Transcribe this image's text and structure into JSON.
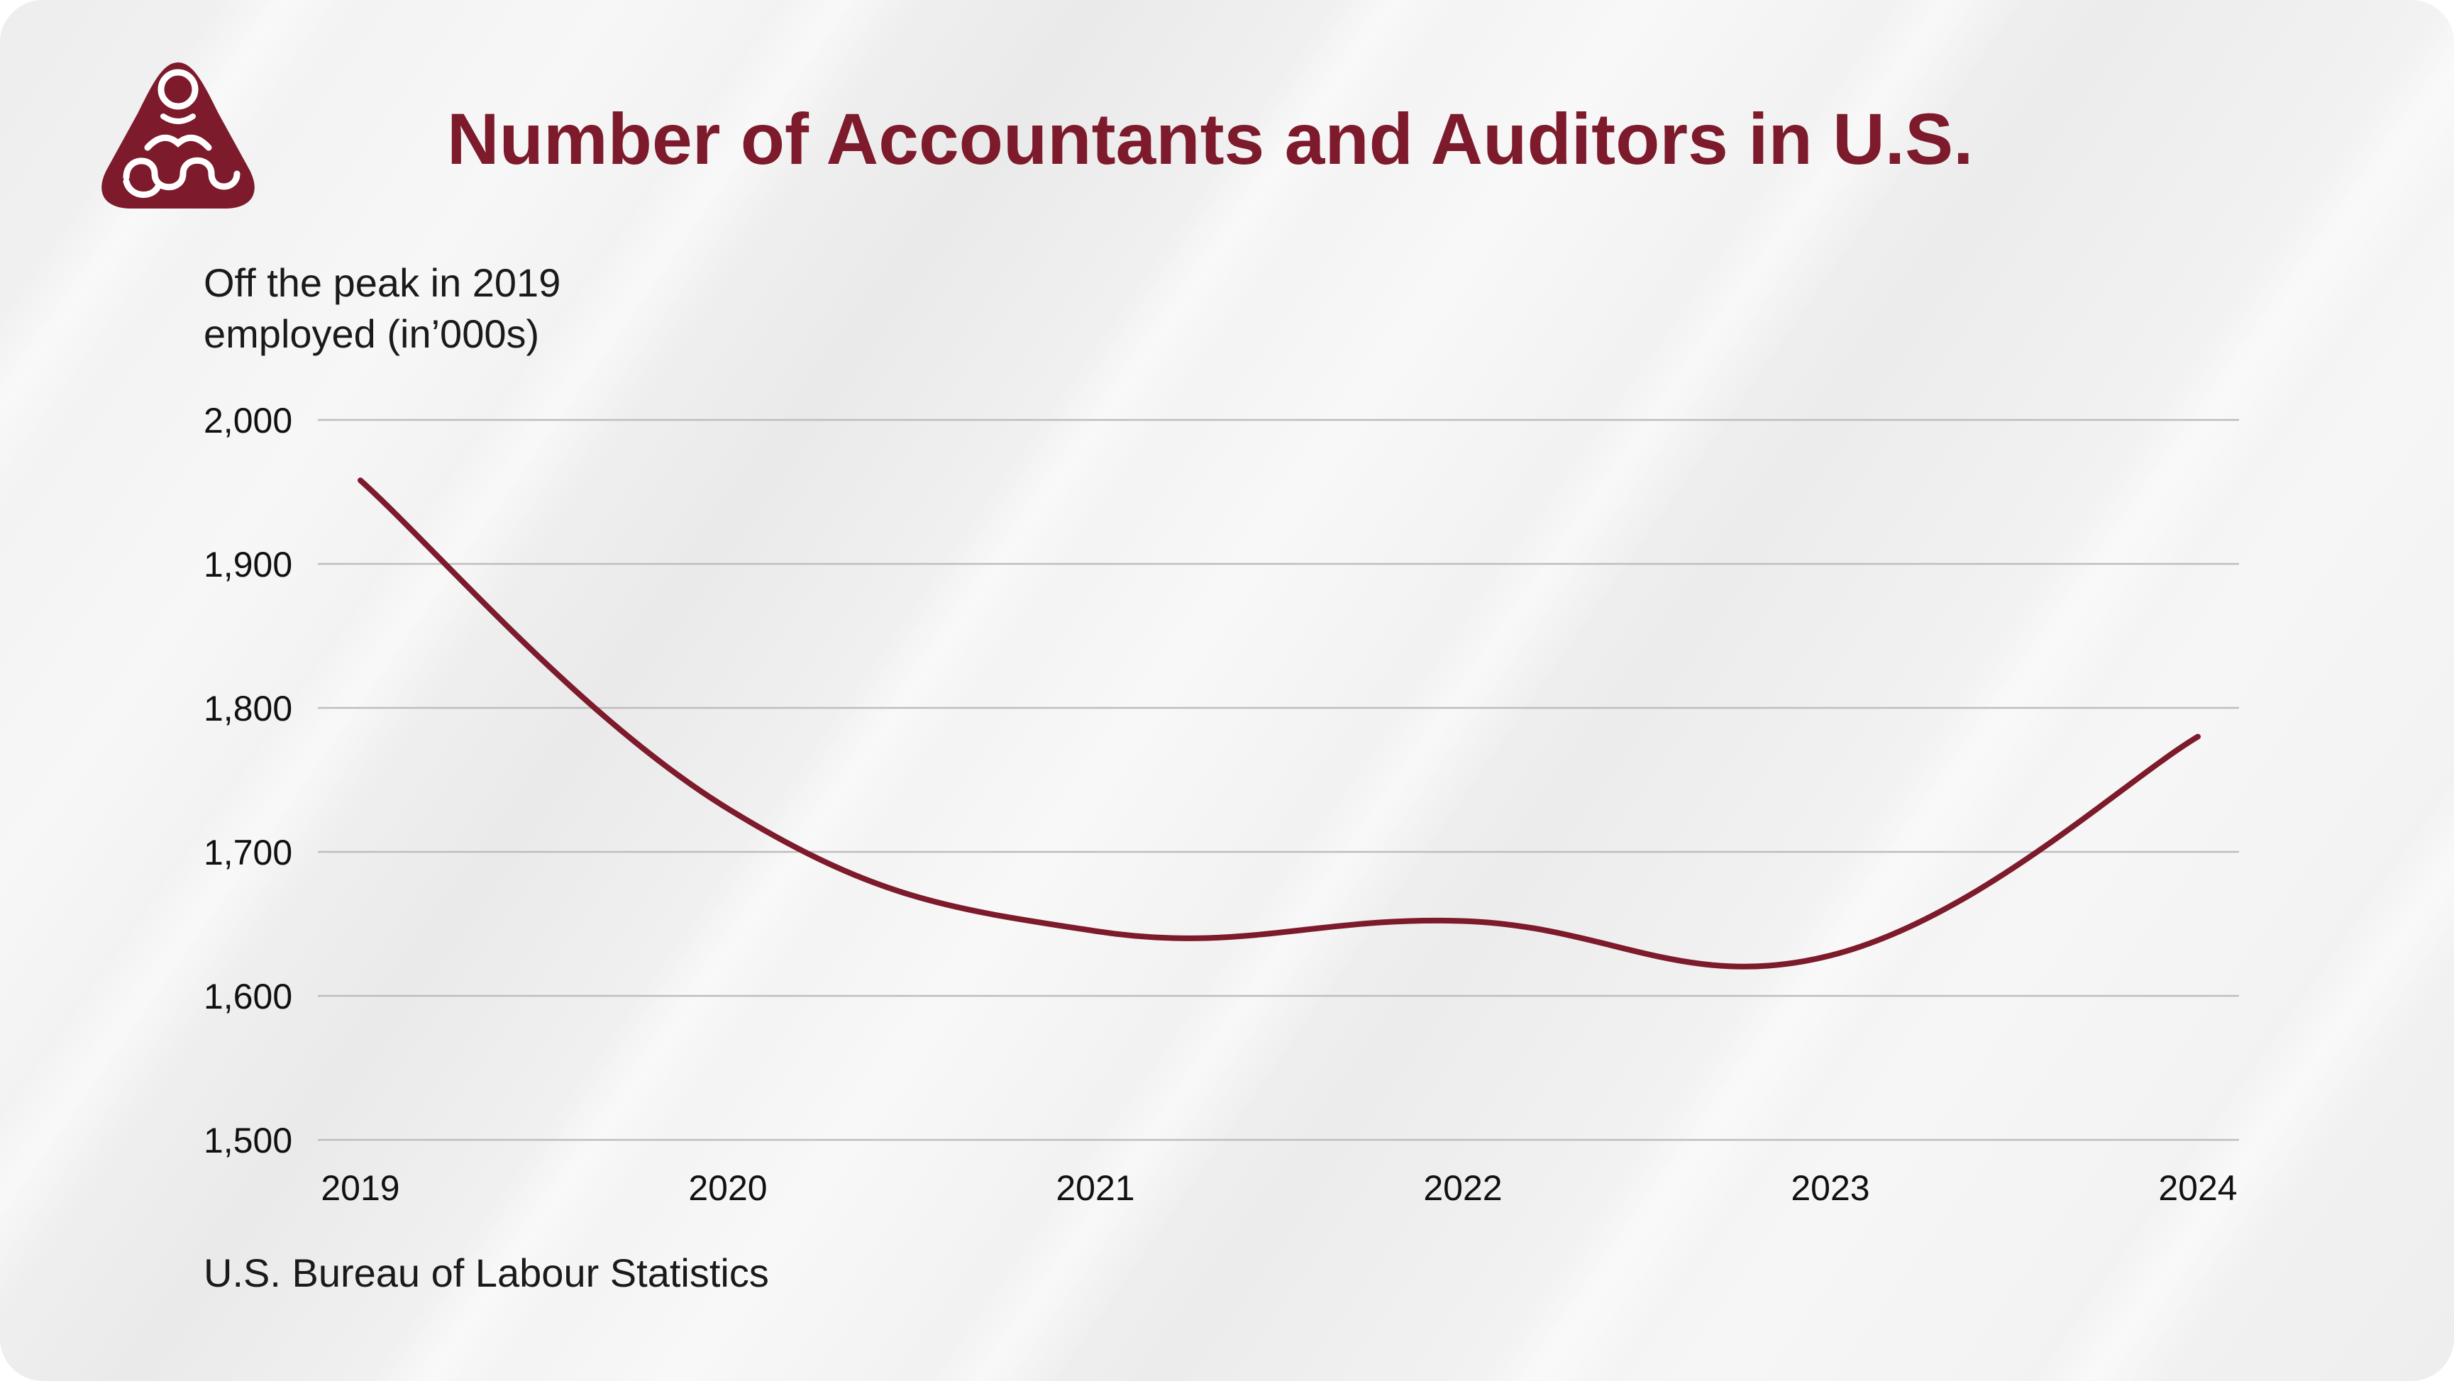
{
  "colors": {
    "accent": "#7d1a2b",
    "gridline": "#bdbdbd",
    "text": "#1a1a1a"
  },
  "logo": {
    "icon": "reader-logo-icon"
  },
  "chart_data": {
    "type": "line",
    "title": "Number of Accountants and Auditors in U.S.",
    "subtitle": [
      "Off the peak in 2019",
      "employed (in’000s)"
    ],
    "x": [
      2019,
      2020,
      2021,
      2022,
      2023,
      2024
    ],
    "x_tick_labels": [
      "2019",
      "2020",
      "2021",
      "2022",
      "2023",
      "2024"
    ],
    "series": [
      {
        "name": "Accountants and Auditors employed (000s)",
        "values": [
          1958,
          1730,
          1645,
          1652,
          1628,
          1780
        ],
        "color": "#7d1a2b"
      }
    ],
    "ylim": [
      1500,
      2000
    ],
    "y_ticks": [
      2000,
      1900,
      1800,
      1700,
      1600,
      1500
    ],
    "y_tick_labels": [
      "2,000",
      "1,900",
      "1,800",
      "1,700",
      "1,600",
      "1,500"
    ],
    "grid": true,
    "source": "U.S. Bureau of Labour Statistics"
  }
}
